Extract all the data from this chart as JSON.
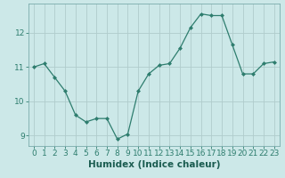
{
  "x": [
    0,
    1,
    2,
    3,
    4,
    5,
    6,
    7,
    8,
    9,
    10,
    11,
    12,
    13,
    14,
    15,
    16,
    17,
    18,
    19,
    20,
    21,
    22,
    23
  ],
  "y": [
    11.0,
    11.1,
    10.7,
    10.3,
    9.6,
    9.4,
    9.5,
    9.5,
    8.9,
    9.05,
    10.3,
    10.8,
    11.05,
    11.1,
    11.55,
    12.15,
    12.55,
    12.5,
    12.5,
    11.65,
    10.8,
    10.8,
    11.1,
    11.15
  ],
  "line_color": "#2e7d6e",
  "marker": "D",
  "marker_size": 2.0,
  "xlabel": "Humidex (Indice chaleur)",
  "xlim": [
    -0.5,
    23.5
  ],
  "ylim": [
    8.7,
    12.85
  ],
  "yticks": [
    9,
    10,
    11,
    12
  ],
  "xticks": [
    0,
    1,
    2,
    3,
    4,
    5,
    6,
    7,
    8,
    9,
    10,
    11,
    12,
    13,
    14,
    15,
    16,
    17,
    18,
    19,
    20,
    21,
    22,
    23
  ],
  "bg_color": "#cce8e8",
  "grid_color": "#b0cccc",
  "tick_color": "#2e7d6e",
  "label_color": "#1a5c50",
  "axis_color": "#7aacac",
  "xlabel_fontsize": 7.5,
  "tick_fontsize": 6.5
}
